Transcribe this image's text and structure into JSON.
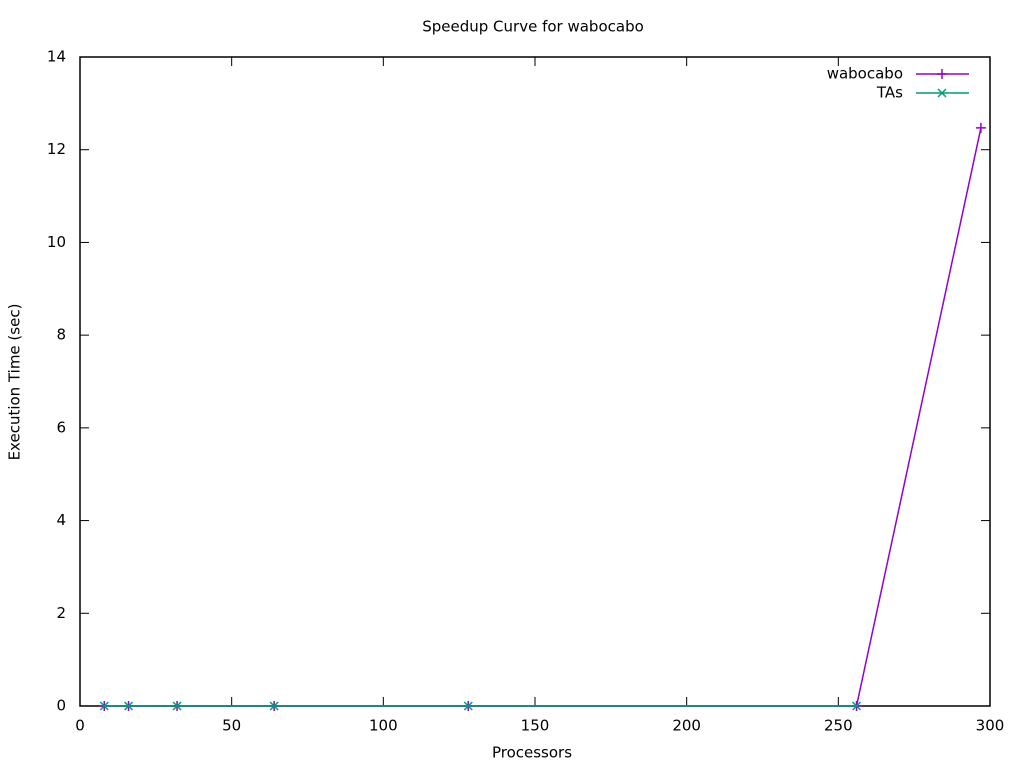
{
  "chart_data": {
    "type": "line",
    "title": "Speedup Curve for wabocabo",
    "x_label": "Processors",
    "y_label": "Execution Time (sec)",
    "xlim": [
      0,
      300
    ],
    "ylim": [
      0,
      14
    ],
    "xticks": [
      0,
      50,
      100,
      150,
      200,
      250,
      300
    ],
    "yticks": [
      0,
      2,
      4,
      6,
      8,
      10,
      12,
      14
    ],
    "grid": false,
    "legend": "top-right",
    "series": [
      {
        "name": "wabocabo",
        "color": "#9400d3",
        "marker": "plus",
        "x": [
          8,
          16,
          32,
          64,
          128,
          256,
          297
        ],
        "values": [
          0,
          0,
          0,
          0,
          0,
          0,
          12.47
        ]
      },
      {
        "name": "TAs",
        "color": "#009e73",
        "marker": "cross",
        "x": [
          8,
          16,
          32,
          64,
          128,
          256
        ],
        "values": [
          0,
          0,
          0,
          0,
          0,
          0
        ]
      }
    ]
  }
}
